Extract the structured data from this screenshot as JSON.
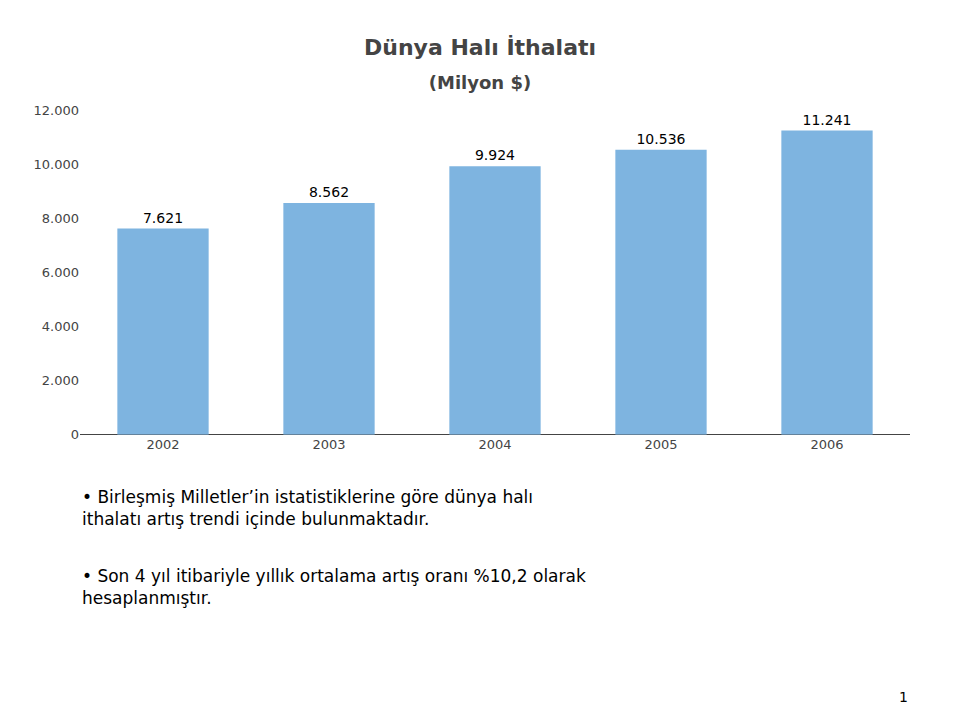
{
  "chart_data": {
    "type": "bar",
    "title": "Dünya Halı İthalatı",
    "subtitle": "(Milyon $)",
    "categories": [
      "2002",
      "2003",
      "2004",
      "2005",
      "2006"
    ],
    "values": [
      7621,
      8562,
      9924,
      10536,
      11241
    ],
    "value_labels": [
      "7.621",
      "8.562",
      "9.924",
      "10.536",
      "11.241"
    ],
    "data_labels": true,
    "color": "#7EB4E0",
    "ylim": [
      0,
      12000
    ],
    "yticks": [
      0,
      {
        "value": 2000,
        "label": "2.000"
      },
      {
        "value": 4000,
        "label": "4.000"
      },
      {
        "value": 6000,
        "label": "6.000"
      },
      {
        "value": 8000,
        "label": "8.000"
      },
      {
        "value": 10000,
        "label": "10.000"
      },
      {
        "value": 12000,
        "label": "12.000"
      }
    ],
    "grid": false,
    "annotations": [
      "• Birleşmiş Milletler’in istatistiklerine göre dünya halı\nithalatı artış trendi içinde bulunmaktadır.",
      "• Son 4 yıl itibariyle yıllık ortalama artış oranı %10,2 olarak\nhesaplanmıştır.",
      "1"
    ]
  }
}
